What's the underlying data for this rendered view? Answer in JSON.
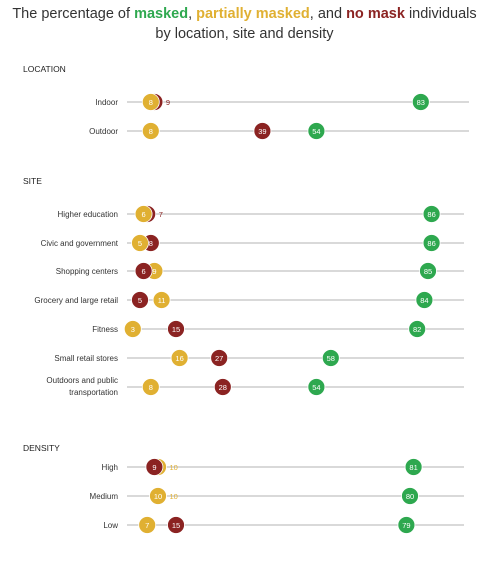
{
  "title": {
    "pre": "The percentage of ",
    "masked": "masked",
    "sep1": ", ",
    "partial": "partially masked",
    "sep2": ", and ",
    "nomask": "no mask",
    "post": " individuals",
    "line2": "by location, site and density"
  },
  "colors": {
    "masked": "#2ea84f",
    "partially_masked": "#e0b032",
    "no_mask": "#8b2322",
    "axis_line": "#b3b3b3",
    "text": "#333333"
  },
  "chart_data": {
    "type": "scatter",
    "title": "The percentage of masked, partially masked, and no mask individuals by location, site and density",
    "series": [
      {
        "name": "masked",
        "key": "masked"
      },
      {
        "name": "partially masked",
        "key": "partial"
      },
      {
        "name": "no mask",
        "key": "nomask"
      }
    ],
    "xlim": [
      0,
      100
    ],
    "groups": [
      {
        "label": "LOCATION",
        "rows": [
          {
            "label": [
              "Indoor"
            ],
            "masked": 83,
            "partial": 8,
            "nomask": 9
          },
          {
            "label": [
              "Outdoor"
            ],
            "masked": 54,
            "partial": 8,
            "nomask": 39
          }
        ]
      },
      {
        "label": "SITE",
        "rows": [
          {
            "label": [
              "Higher education"
            ],
            "masked": 86,
            "partial": 6,
            "nomask": 7
          },
          {
            "label": [
              "Civic and government"
            ],
            "masked": 86,
            "partial": 5,
            "nomask": 8
          },
          {
            "label": [
              "Shopping centers"
            ],
            "masked": 85,
            "partial": 9,
            "nomask": 6
          },
          {
            "label": [
              "Grocery and large retail"
            ],
            "masked": 84,
            "partial": 11,
            "nomask": 5
          },
          {
            "label": [
              "Fitness"
            ],
            "masked": 82,
            "partial": 3,
            "nomask": 15
          },
          {
            "label": [
              "Small retail stores"
            ],
            "masked": 58,
            "partial": 16,
            "nomask": 27
          },
          {
            "label": [
              "Outdoors and public",
              "transportation"
            ],
            "masked": 54,
            "partial": 8,
            "nomask": 28
          }
        ]
      },
      {
        "label": "DENSITY",
        "rows": [
          {
            "label": [
              "High"
            ],
            "masked": 81,
            "partial": 10,
            "nomask": 9
          },
          {
            "label": [
              "Medium"
            ],
            "masked": 80,
            "partial": 10,
            "nomask": 10
          },
          {
            "label": [
              "Low"
            ],
            "masked": 79,
            "partial": 7,
            "nomask": 15
          }
        ]
      }
    ]
  }
}
